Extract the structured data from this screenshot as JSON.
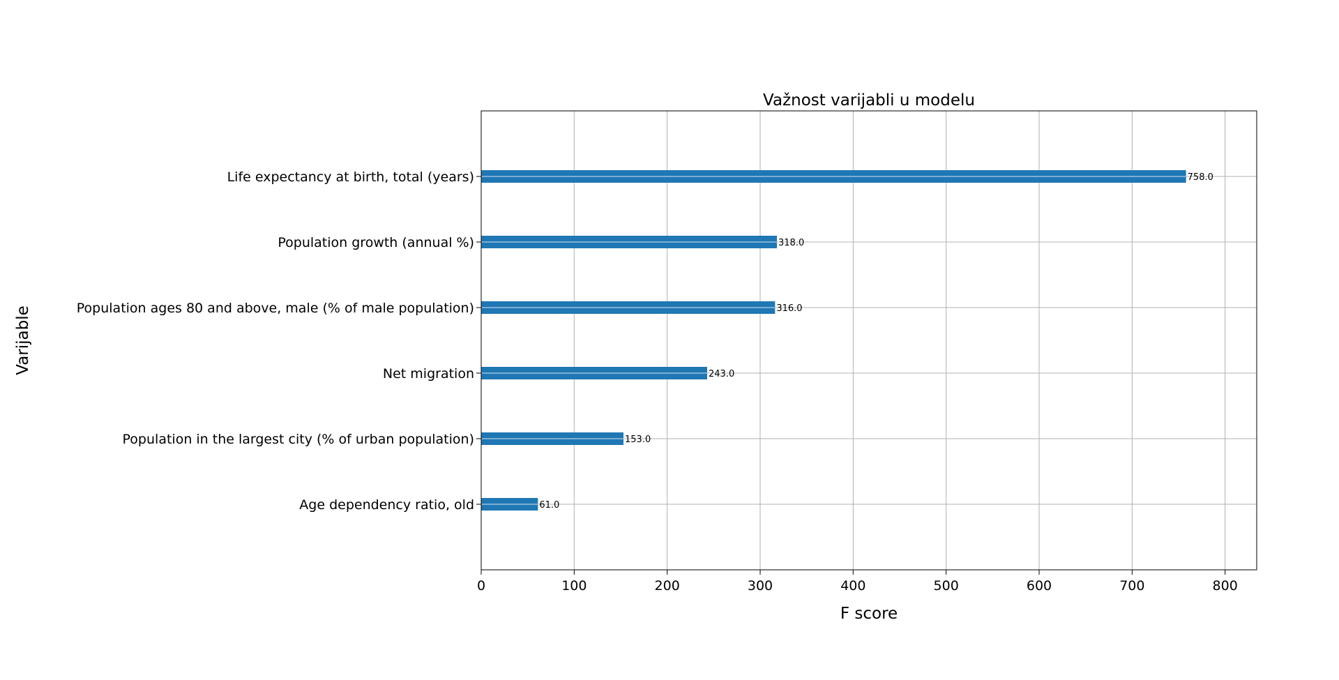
{
  "chart_data": {
    "type": "bar",
    "orientation": "horizontal",
    "title": "Važnost varijabli u modelu",
    "xlabel": "F score",
    "ylabel": "Varijable",
    "xlim": [
      0,
      834
    ],
    "xticks": [
      0,
      100,
      200,
      300,
      400,
      500,
      600,
      700,
      800
    ],
    "grid": true,
    "legend": "none",
    "bar_color": "#1f77b4",
    "categories": [
      "Life expectancy at birth, total (years)",
      "Population growth (annual %)",
      "Population ages 80 and above, male (% of male population)",
      "Net migration",
      "Population in the largest city (% of urban population)",
      "Age dependency ratio, old"
    ],
    "values": [
      758,
      318,
      316,
      243,
      153,
      61
    ],
    "value_labels": [
      "758.0",
      "318.0",
      "316.0",
      "243.0",
      "153.0",
      "61.0"
    ]
  }
}
